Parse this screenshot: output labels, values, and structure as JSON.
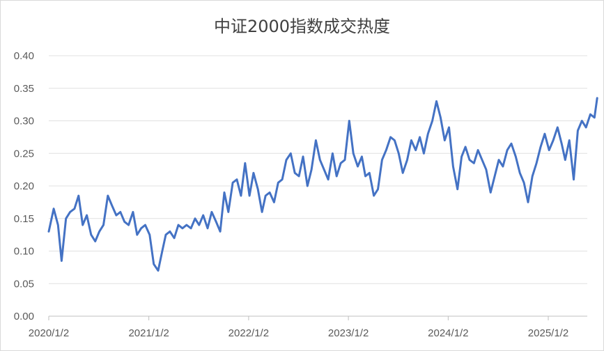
{
  "chart_data": {
    "type": "line",
    "title": "中证2000指数成交热度",
    "xlabel": "",
    "ylabel": "",
    "ylim": [
      0,
      0.4
    ],
    "y_ticks": [
      "0.00",
      "0.05",
      "0.10",
      "0.15",
      "0.20",
      "0.25",
      "0.30",
      "0.35",
      "0.40"
    ],
    "x_ticks": [
      "2020/1/2",
      "2021/1/2",
      "2022/1/2",
      "2023/1/2",
      "2024/1/2",
      "2025/1/2"
    ],
    "x_range": [
      "2020-01-02",
      "2025-06-30"
    ],
    "grid": true,
    "legend": "none",
    "line_color": "#4472C4",
    "series": [
      {
        "x": [
          "2020-01-02",
          "2020-01-20",
          "2020-02-05",
          "2020-02-18",
          "2020-03-05",
          "2020-03-20",
          "2020-04-05",
          "2020-04-20",
          "2020-05-05",
          "2020-05-20",
          "2020-06-05",
          "2020-06-20",
          "2020-07-05",
          "2020-07-20",
          "2020-08-05",
          "2020-08-20",
          "2020-09-05",
          "2020-09-20",
          "2020-10-05",
          "2020-10-20",
          "2020-11-05",
          "2020-11-20",
          "2020-12-05",
          "2020-12-20",
          "2021-01-05",
          "2021-01-20",
          "2021-02-05",
          "2021-02-20",
          "2021-03-05",
          "2021-03-20",
          "2021-04-05",
          "2021-04-20",
          "2021-05-05",
          "2021-05-20",
          "2021-06-05",
          "2021-06-20",
          "2021-07-05",
          "2021-07-20",
          "2021-08-05",
          "2021-08-20",
          "2021-09-05",
          "2021-09-20",
          "2021-10-05",
          "2021-10-20",
          "2021-11-05",
          "2021-11-20",
          "2021-12-05",
          "2021-12-20",
          "2022-01-05",
          "2022-01-20",
          "2022-02-05",
          "2022-02-20",
          "2022-03-05",
          "2022-03-20",
          "2022-04-05",
          "2022-04-20",
          "2022-05-05",
          "2022-05-20",
          "2022-06-05",
          "2022-06-20",
          "2022-07-05",
          "2022-07-20",
          "2022-08-05",
          "2022-08-20",
          "2022-09-05",
          "2022-09-20",
          "2022-10-05",
          "2022-10-20",
          "2022-11-05",
          "2022-11-20",
          "2022-12-05",
          "2022-12-20",
          "2023-01-05",
          "2023-01-20",
          "2023-02-05",
          "2023-02-20",
          "2023-03-05",
          "2023-03-20",
          "2023-04-05",
          "2023-04-20",
          "2023-05-05",
          "2023-05-20",
          "2023-06-05",
          "2023-06-20",
          "2023-07-05",
          "2023-07-20",
          "2023-08-05",
          "2023-08-20",
          "2023-09-05",
          "2023-09-20",
          "2023-10-05",
          "2023-10-20",
          "2023-11-05",
          "2023-11-20",
          "2023-12-05",
          "2023-12-20",
          "2024-01-05",
          "2024-01-20",
          "2024-02-05",
          "2024-02-20",
          "2024-03-05",
          "2024-03-20",
          "2024-04-05",
          "2024-04-20",
          "2024-05-05",
          "2024-05-20",
          "2024-06-05",
          "2024-06-20",
          "2024-07-05",
          "2024-07-20",
          "2024-08-05",
          "2024-08-20",
          "2024-09-05",
          "2024-09-20",
          "2024-10-05",
          "2024-10-20",
          "2024-11-05",
          "2024-11-20",
          "2024-12-05",
          "2024-12-20",
          "2025-01-05",
          "2025-01-20",
          "2025-02-05",
          "2025-02-20",
          "2025-03-05",
          "2025-03-20",
          "2025-04-05",
          "2025-04-20",
          "2025-05-05",
          "2025-05-20",
          "2025-06-05",
          "2025-06-20",
          "2025-06-30"
        ],
        "values": [
          0.13,
          0.165,
          0.14,
          0.085,
          0.15,
          0.16,
          0.165,
          0.185,
          0.14,
          0.155,
          0.125,
          0.115,
          0.13,
          0.14,
          0.185,
          0.17,
          0.155,
          0.16,
          0.145,
          0.14,
          0.16,
          0.125,
          0.135,
          0.14,
          0.125,
          0.08,
          0.07,
          0.1,
          0.125,
          0.13,
          0.12,
          0.14,
          0.135,
          0.14,
          0.135,
          0.15,
          0.14,
          0.155,
          0.135,
          0.16,
          0.145,
          0.13,
          0.19,
          0.16,
          0.205,
          0.21,
          0.185,
          0.235,
          0.185,
          0.22,
          0.195,
          0.16,
          0.185,
          0.19,
          0.175,
          0.205,
          0.21,
          0.24,
          0.25,
          0.22,
          0.215,
          0.245,
          0.2,
          0.225,
          0.27,
          0.24,
          0.225,
          0.21,
          0.25,
          0.215,
          0.235,
          0.24,
          0.3,
          0.25,
          0.23,
          0.245,
          0.215,
          0.22,
          0.185,
          0.195,
          0.24,
          0.255,
          0.275,
          0.27,
          0.25,
          0.22,
          0.24,
          0.27,
          0.255,
          0.275,
          0.25,
          0.28,
          0.3,
          0.33,
          0.305,
          0.27,
          0.29,
          0.23,
          0.195,
          0.245,
          0.26,
          0.24,
          0.235,
          0.255,
          0.24,
          0.225,
          0.19,
          0.215,
          0.24,
          0.23,
          0.255,
          0.265,
          0.245,
          0.22,
          0.205,
          0.175,
          0.215,
          0.235,
          0.26,
          0.28,
          0.255,
          0.27,
          0.29,
          0.265,
          0.24,
          0.27,
          0.21,
          0.285,
          0.3,
          0.29,
          0.31,
          0.305,
          0.335
        ]
      }
    ]
  }
}
